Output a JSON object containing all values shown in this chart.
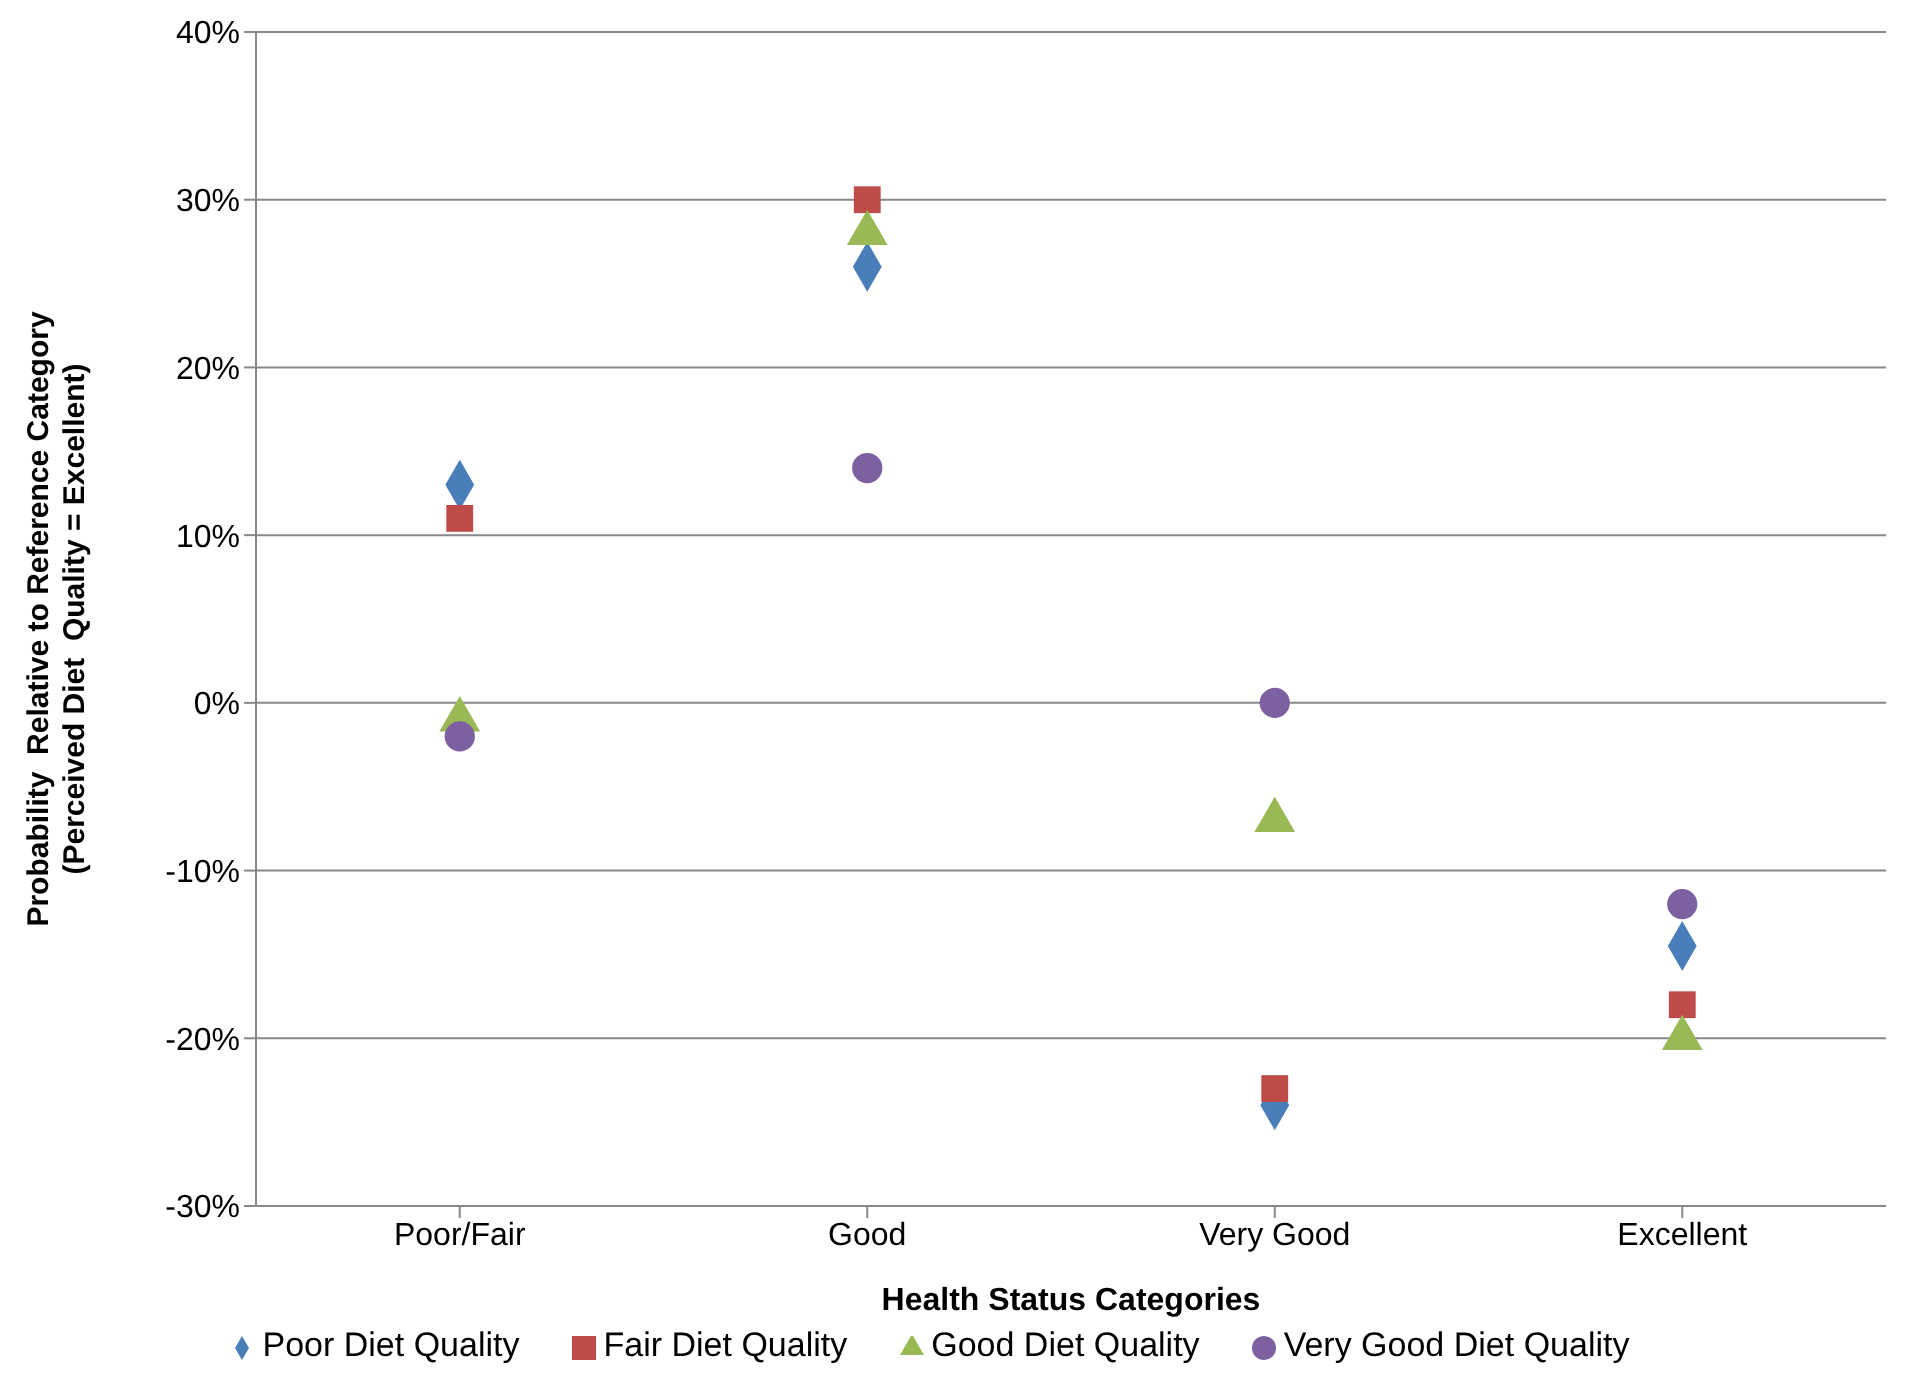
{
  "chart_data": {
    "type": "scatter",
    "xlabel": "Health Status Categories",
    "ylabel": "Probability  Relative to Reference Category\n(Perceived Diet  Quality = Excellent)",
    "categories": [
      "Poor/Fair",
      "Good",
      "Very Good",
      "Excellent"
    ],
    "series": [
      {
        "name": "Poor Diet Quality",
        "color": "#4a7ebb",
        "marker": "diamond",
        "values": [
          13,
          26,
          -24,
          -14.5
        ]
      },
      {
        "name": "Fair Diet Quality",
        "color": "#be4b48",
        "marker": "square",
        "values": [
          11,
          30,
          -23,
          -18
        ]
      },
      {
        "name": "Good Diet Quality",
        "color": "#98b954",
        "marker": "triangle",
        "values": [
          -1,
          28,
          -7,
          -20
        ]
      },
      {
        "name": "Very Good Diet Quality",
        "color": "#7d60a0",
        "marker": "circle",
        "values": [
          -2,
          14,
          0,
          -12
        ]
      }
    ],
    "ylim": [
      -30,
      40
    ],
    "yticks": [
      {
        "value": -30,
        "label": "-30%"
      },
      {
        "value": -20,
        "label": "-20%"
      },
      {
        "value": -10,
        "label": "-10%"
      },
      {
        "value": 0,
        "label": "0%"
      },
      {
        "value": 10,
        "label": "10%"
      },
      {
        "value": 20,
        "label": "20%"
      },
      {
        "value": 30,
        "label": "30%"
      },
      {
        "value": 40,
        "label": "40%"
      }
    ],
    "grid": "y",
    "legend": "bottom"
  }
}
